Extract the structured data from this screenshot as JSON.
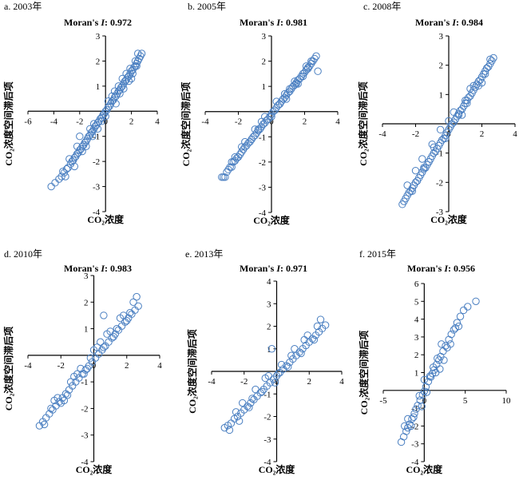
{
  "axis_titles": {
    "x": "CO₂浓度",
    "y": "CO₂浓度空间滞后项"
  },
  "colors": {
    "points": "#4a7fc1",
    "axes": "#000000"
  },
  "chart_data": [
    {
      "type": "scatter",
      "panel": "a. 2003年",
      "title": "Moran's I: 0.972",
      "title_prefix": "Moran's ",
      "title_italic": "I",
      "title_suffix": ": 0.972",
      "xlabel": "CO₂浓度",
      "ylabel": "CO₂浓度空间滞后项",
      "xlim": [
        -6,
        4
      ],
      "ylim": [
        -4,
        3
      ],
      "xticks": [
        -6,
        -4,
        -2,
        0,
        2,
        4
      ],
      "yticks": [
        -4,
        -3,
        -2,
        -1,
        0,
        1,
        2,
        3
      ],
      "x": [
        -4.2,
        -3.9,
        -3.6,
        -3.4,
        -3.2,
        -3.0,
        -2.9,
        -2.7,
        -2.6,
        -2.5,
        -2.4,
        -2.3,
        -2.2,
        -2.1,
        -2.0,
        -1.9,
        -1.8,
        -1.7,
        -1.6,
        -1.5,
        -1.4,
        -1.3,
        -1.2,
        -1.1,
        -1.0,
        -0.9,
        -0.8,
        -0.7,
        -0.6,
        -0.5,
        -0.4,
        -0.3,
        -0.2,
        -0.1,
        0.0,
        0.1,
        0.2,
        0.3,
        0.4,
        0.5,
        0.6,
        0.7,
        0.8,
        0.9,
        1.0,
        1.1,
        1.2,
        1.3,
        1.4,
        1.5,
        1.6,
        1.7,
        1.8,
        1.9,
        2.0,
        2.1,
        2.2,
        2.3,
        2.4,
        2.5,
        2.6,
        2.7,
        2.8,
        -2.8,
        -2.4,
        -1.8,
        -1.2,
        -0.6,
        0.2,
        0.8,
        1.3,
        1.8,
        2.3,
        -3.3,
        -2.2,
        -1.5,
        -0.9,
        0.5,
        1.1,
        1.6,
        2.1,
        2.5,
        -2.0,
        -1.0,
        0.0,
        1.0,
        2.0,
        -3.1,
        -0.3,
        0.7,
        1.4,
        1.9,
        2.4
      ],
      "y": [
        -3.0,
        -2.85,
        -2.7,
        -2.6,
        -2.45,
        -2.3,
        -2.25,
        -2.1,
        -2.0,
        -1.95,
        -1.85,
        -1.8,
        -1.7,
        -1.65,
        -1.55,
        -1.5,
        -1.4,
        -1.35,
        -1.25,
        -1.2,
        -1.1,
        -1.0,
        -0.95,
        -0.85,
        -0.8,
        -0.7,
        -0.6,
        -0.55,
        -0.45,
        -0.4,
        -0.3,
        -0.25,
        -0.15,
        -0.1,
        0.0,
        0.05,
        0.15,
        0.2,
        0.3,
        0.4,
        0.45,
        0.55,
        0.6,
        0.7,
        0.8,
        0.85,
        0.95,
        1.0,
        1.1,
        1.2,
        1.25,
        1.35,
        1.4,
        1.5,
        1.6,
        1.65,
        1.75,
        1.8,
        1.9,
        2.0,
        2.1,
        2.2,
        2.3,
        -1.9,
        -2.2,
        -1.6,
        -0.7,
        -0.7,
        0.4,
        0.3,
        1.3,
        1.2,
        2.0,
        -2.4,
        -1.4,
        -1.4,
        -0.5,
        0.6,
        0.7,
        1.5,
        1.5,
        2.3,
        -1.0,
        -1.0,
        -0.2,
        1.0,
        1.3,
        -2.6,
        -0.4,
        0.8,
        0.9,
        1.7,
        1.8
      ]
    },
    {
      "type": "scatter",
      "panel": "b. 2005年",
      "title": "Moran's I: 0.981",
      "title_prefix": "Moran's ",
      "title_italic": "I",
      "title_suffix": ": 0.981",
      "xlabel": "CO₂浓度",
      "ylabel": "CO₂浓度空间滞后项",
      "xlim": [
        -4,
        4
      ],
      "ylim": [
        -4,
        3
      ],
      "xticks": [
        -4,
        -2,
        0,
        2,
        4
      ],
      "yticks": [
        -4,
        -3,
        -2,
        -1,
        0,
        1,
        2,
        3
      ],
      "x": [
        -3.0,
        -2.9,
        -2.7,
        -2.6,
        -2.5,
        -2.4,
        -2.3,
        -2.2,
        -2.1,
        -2.0,
        -1.9,
        -1.8,
        -1.7,
        -1.6,
        -1.5,
        -1.4,
        -1.3,
        -1.2,
        -1.1,
        -1.0,
        -0.9,
        -0.8,
        -0.7,
        -0.6,
        -0.5,
        -0.4,
        -0.3,
        -0.2,
        -0.1,
        0.0,
        0.1,
        0.2,
        0.3,
        0.4,
        0.5,
        0.6,
        0.7,
        0.8,
        0.9,
        1.0,
        1.1,
        1.2,
        1.3,
        1.4,
        1.5,
        1.6,
        1.7,
        1.8,
        1.9,
        2.0,
        2.1,
        2.2,
        2.3,
        2.4,
        2.5,
        2.6,
        2.7,
        -2.8,
        -2.2,
        -1.6,
        -1.0,
        -0.4,
        0.3,
        0.9,
        1.4,
        1.9,
        2.4,
        -2.4,
        -1.8,
        -1.2,
        -0.6,
        0.5,
        1.1,
        1.6,
        2.1,
        -0.8,
        0.0,
        0.8,
        1.5,
        2.2,
        2.8
      ],
      "y": [
        -2.6,
        -2.6,
        -2.4,
        -2.3,
        -2.2,
        -2.2,
        -2.0,
        -1.95,
        -1.85,
        -1.8,
        -1.7,
        -1.6,
        -1.5,
        -1.4,
        -1.35,
        -1.25,
        -1.2,
        -1.1,
        -1.0,
        -0.95,
        -0.85,
        -0.75,
        -0.7,
        -0.6,
        -0.5,
        -0.45,
        -0.35,
        -0.3,
        -0.2,
        -0.1,
        0.0,
        0.05,
        0.15,
        0.25,
        0.3,
        0.4,
        0.5,
        0.55,
        0.65,
        0.75,
        0.8,
        0.9,
        1.0,
        1.05,
        1.15,
        1.25,
        1.3,
        1.4,
        1.5,
        1.55,
        1.65,
        1.75,
        1.8,
        1.9,
        2.0,
        2.1,
        2.2,
        -2.6,
        -1.8,
        -1.2,
        -0.7,
        -0.2,
        0.4,
        0.5,
        1.2,
        1.4,
        2.0,
        -2.0,
        -1.4,
        -1.1,
        -0.4,
        0.3,
        0.9,
        1.1,
        1.8,
        -0.7,
        -0.2,
        0.7,
        1.1,
        1.7,
        1.6
      ]
    },
    {
      "type": "scatter",
      "panel": "c. 2008年",
      "title": "Moran's I: 0.984",
      "title_prefix": "Moran's ",
      "title_italic": "I",
      "title_suffix": ": 0.984",
      "xlabel": "CO₂浓度",
      "ylabel": "CO₂浓度空间滞后项",
      "xlim": [
        -4,
        4
      ],
      "ylim": [
        -3,
        3
      ],
      "xticks": [
        -4,
        -2,
        0,
        2,
        4
      ],
      "yticks": [
        -3,
        -2,
        -1,
        0,
        1,
        2,
        3
      ],
      "x": [
        -2.8,
        -2.7,
        -2.6,
        -2.5,
        -2.4,
        -2.3,
        -2.2,
        -2.1,
        -2.0,
        -1.9,
        -1.8,
        -1.7,
        -1.6,
        -1.5,
        -1.4,
        -1.3,
        -1.2,
        -1.1,
        -1.0,
        -0.9,
        -0.8,
        -0.7,
        -0.6,
        -0.5,
        -0.4,
        -0.3,
        -0.2,
        -0.1,
        0.0,
        0.1,
        0.2,
        0.3,
        0.4,
        0.5,
        0.6,
        0.7,
        0.8,
        0.9,
        1.0,
        1.1,
        1.2,
        1.3,
        1.4,
        1.5,
        1.6,
        1.7,
        1.8,
        1.9,
        2.0,
        2.1,
        2.2,
        2.3,
        2.4,
        2.5,
        2.6,
        2.7,
        -2.5,
        -2.0,
        -1.5,
        -1.0,
        -0.5,
        0.3,
        0.8,
        1.3,
        1.8,
        2.3,
        -2.2,
        -1.6,
        -0.9,
        -0.2,
        0.6,
        1.1,
        1.5,
        2.0,
        2.5,
        -1.2,
        0.0,
        1.0,
        2.2
      ],
      "y": [
        -2.75,
        -2.65,
        -2.55,
        -2.45,
        -2.35,
        -2.3,
        -2.2,
        -2.1,
        -2.0,
        -1.95,
        -1.85,
        -1.75,
        -1.65,
        -1.55,
        -1.5,
        -1.4,
        -1.3,
        -1.2,
        -1.1,
        -1.0,
        -0.95,
        -0.85,
        -0.75,
        -0.65,
        -0.55,
        -0.5,
        -0.4,
        -0.3,
        -0.2,
        -0.1,
        0.0,
        0.05,
        0.15,
        0.25,
        0.35,
        0.45,
        0.5,
        0.6,
        0.7,
        0.8,
        0.9,
        0.95,
        1.05,
        1.15,
        1.25,
        1.35,
        1.45,
        1.5,
        1.6,
        1.7,
        1.8,
        1.9,
        1.95,
        2.05,
        2.15,
        2.25,
        -2.1,
        -1.6,
        -1.5,
        -0.7,
        -0.2,
        0.4,
        0.3,
        1.2,
        1.3,
        1.9,
        -2.3,
        -1.2,
        -0.8,
        -0.5,
        0.3,
        0.7,
        1.3,
        1.4,
        2.2,
        -1.3,
        0.1,
        0.8,
        1.7
      ]
    },
    {
      "type": "scatter",
      "panel": "d. 2010年",
      "title": "Moran's I: 0.983",
      "title_prefix": "Moran's ",
      "title_italic": "I",
      "title_suffix": ": 0.983",
      "xlabel": "CO₂浓度",
      "ylabel": "CO₂浓度空间滞后项",
      "xlim": [
        -4,
        4
      ],
      "ylim": [
        -4,
        3
      ],
      "xticks": [
        -4,
        -2,
        0,
        2,
        4
      ],
      "yticks": [
        -4,
        -3,
        -2,
        -1,
        0,
        1,
        2,
        3
      ],
      "x": [
        -3.3,
        -3.1,
        -2.9,
        -2.7,
        -2.5,
        -2.3,
        -2.1,
        -1.9,
        -1.7,
        -1.5,
        -1.3,
        -1.1,
        -0.9,
        -0.7,
        -0.5,
        -0.3,
        -0.1,
        0.1,
        0.3,
        0.5,
        0.7,
        0.9,
        1.1,
        1.3,
        1.5,
        1.7,
        1.9,
        2.1,
        2.3,
        2.5,
        2.7,
        -3.0,
        -2.6,
        -2.2,
        -1.8,
        -1.4,
        -1.0,
        -0.6,
        -0.2,
        0.2,
        0.6,
        1.0,
        1.4,
        1.8,
        2.2,
        2.6,
        -2.4,
        -2.0,
        -1.2,
        -0.4,
        0.4,
        1.2,
        2.0,
        -1.6,
        -0.8,
        0.0,
        0.8,
        1.6,
        2.4,
        0.6
      ],
      "y": [
        -2.65,
        -2.5,
        -2.35,
        -2.2,
        -2.05,
        -1.9,
        -1.75,
        -1.6,
        -1.45,
        -1.3,
        -1.15,
        -1.0,
        -0.85,
        -0.7,
        -0.55,
        -0.4,
        -0.25,
        -0.1,
        0.05,
        0.2,
        0.35,
        0.5,
        0.65,
        0.8,
        0.95,
        1.1,
        1.25,
        1.4,
        1.55,
        1.7,
        1.85,
        -2.6,
        -2.0,
        -1.6,
        -1.7,
        -1.0,
        -0.7,
        -0.7,
        -0.1,
        0.3,
        0.3,
        0.9,
        1.0,
        1.5,
        1.6,
        2.2,
        -1.7,
        -1.8,
        -0.8,
        -0.5,
        0.5,
        0.7,
        1.3,
        -1.5,
        -0.5,
        0.2,
        0.8,
        1.4,
        2.0,
        1.5
      ]
    },
    {
      "type": "scatter",
      "panel": "e. 2013年",
      "title": "Moran's I: 0.971",
      "title_prefix": "Moran's ",
      "title_italic": "I",
      "title_suffix": ": 0.971",
      "xlabel": "CO₂浓度",
      "ylabel": "CO₂浓度空间滞后项",
      "xlim": [
        -4,
        4
      ],
      "ylim": [
        -4,
        4
      ],
      "xticks": [
        -4,
        -2,
        0,
        2,
        4
      ],
      "yticks": [
        -4,
        -3,
        -2,
        -1,
        0,
        1,
        2,
        3,
        4
      ],
      "x": [
        -3.2,
        -3.0,
        -2.8,
        -2.6,
        -2.4,
        -2.2,
        -2.0,
        -1.8,
        -1.6,
        -1.4,
        -1.2,
        -1.0,
        -0.8,
        -0.6,
        -0.4,
        -0.2,
        0.0,
        0.2,
        0.4,
        0.6,
        0.8,
        1.0,
        1.2,
        1.4,
        1.6,
        1.8,
        2.0,
        2.2,
        2.4,
        2.6,
        2.8,
        3.0,
        -2.9,
        -2.5,
        -2.1,
        -1.7,
        -1.3,
        -0.9,
        -0.5,
        -0.1,
        0.3,
        0.7,
        1.1,
        1.5,
        1.9,
        2.3,
        2.7,
        -2.3,
        -1.5,
        -0.7,
        0.1,
        0.9,
        1.7,
        2.5,
        -0.3
      ],
      "y": [
        -2.5,
        -2.4,
        -2.3,
        -2.1,
        -2.0,
        -1.85,
        -1.7,
        -1.55,
        -1.4,
        -1.25,
        -1.1,
        -0.95,
        -0.8,
        -0.65,
        -0.5,
        -0.35,
        -0.2,
        -0.05,
        0.1,
        0.25,
        0.4,
        0.55,
        0.7,
        0.85,
        1.0,
        1.15,
        1.3,
        1.45,
        1.6,
        1.75,
        1.9,
        2.05,
        -2.6,
        -1.8,
        -1.4,
        -1.6,
        -0.8,
        -0.9,
        -0.2,
        -0.5,
        0.3,
        0.2,
        1.0,
        0.8,
        1.6,
        1.4,
        2.3,
        -2.2,
        -1.2,
        -0.3,
        -0.1,
        0.7,
        1.4,
        2.0,
        1.0
      ]
    },
    {
      "type": "scatter",
      "panel": "f. 2015年",
      "title": "Moran's I: 0.956",
      "title_prefix": "Moran's ",
      "title_italic": "I",
      "title_suffix": ": 0.956",
      "xlabel": "CO₂浓度",
      "ylabel": "CO₂浓度空间滞后项",
      "xlim": [
        -5,
        10
      ],
      "ylim": [
        -4,
        6
      ],
      "xticks": [
        -5,
        0,
        5,
        10
      ],
      "yticks": [
        -4,
        -3,
        -2,
        -1,
        0,
        1,
        2,
        3,
        4,
        5,
        6
      ],
      "x": [
        -2.8,
        -2.5,
        -2.2,
        -2.0,
        -1.8,
        -1.5,
        -1.2,
        -1.0,
        -0.8,
        -0.5,
        -0.2,
        0.0,
        0.2,
        0.5,
        0.8,
        1.0,
        1.2,
        1.5,
        1.8,
        2.0,
        2.3,
        2.6,
        3.0,
        3.3,
        3.6,
        4.0,
        4.4,
        4.8,
        5.3,
        6.3,
        -2.0,
        -1.3,
        -0.6,
        0.3,
        1.1,
        1.9,
        2.8,
        3.8,
        -1.6,
        -0.3,
        0.7,
        1.6,
        2.4,
        3.2,
        4.2,
        -2.4,
        0.0,
        1.4,
        2.1
      ],
      "y": [
        -2.9,
        -2.6,
        -2.3,
        -2.1,
        -1.9,
        -1.6,
        -1.3,
        -1.05,
        -0.85,
        -0.55,
        -0.25,
        -0.05,
        0.2,
        0.5,
        0.75,
        0.95,
        1.15,
        1.45,
        1.7,
        1.9,
        2.2,
        2.5,
        2.85,
        3.15,
        3.4,
        3.8,
        4.15,
        4.5,
        4.7,
        5.0,
        -1.6,
        -1.5,
        -0.3,
        -0.1,
        1.3,
        1.2,
        2.4,
        3.5,
        -2.0,
        -0.9,
        0.8,
        1.8,
        1.7,
        2.6,
        3.6,
        -2.0,
        0.6,
        1.0,
        2.6
      ]
    }
  ]
}
